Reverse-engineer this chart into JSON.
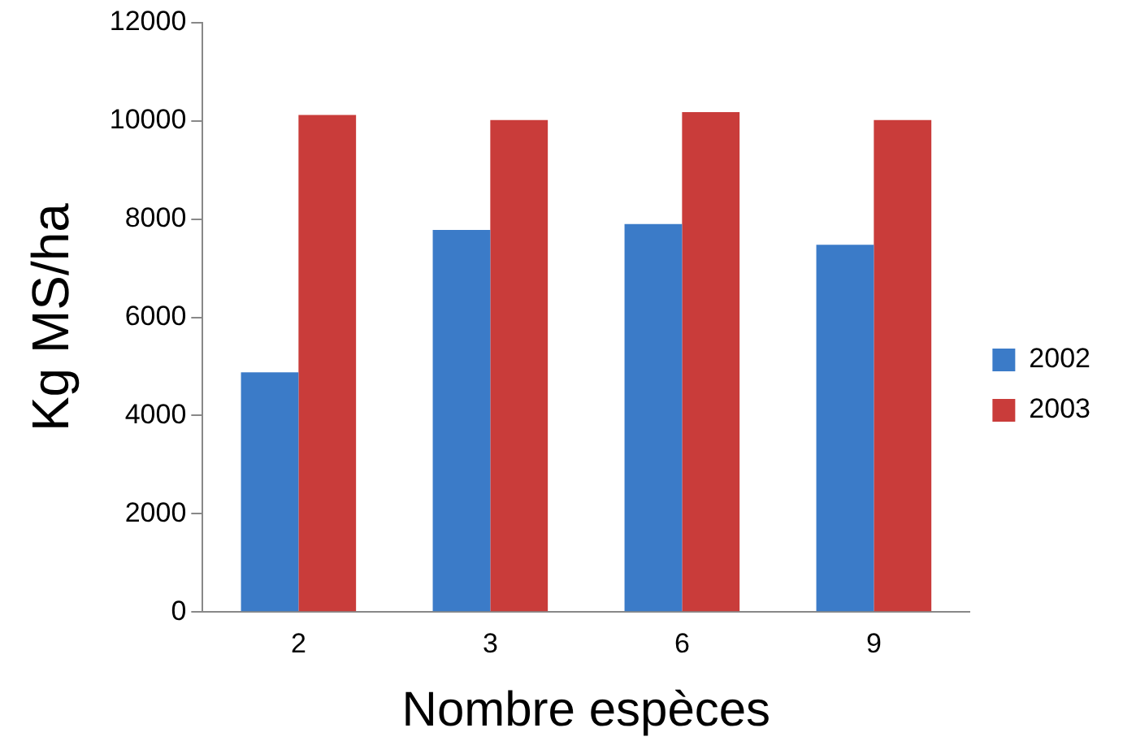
{
  "chart_data": {
    "type": "bar",
    "xlabel": "Nombre espèces",
    "ylabel": "Kg MS/ha",
    "categories": [
      "2",
      "3",
      "6",
      "9"
    ],
    "series": [
      {
        "name": "2002",
        "color": "#3b7bc8",
        "values": [
          4880,
          7780,
          7900,
          7480
        ]
      },
      {
        "name": "2003",
        "color": "#c93c3a",
        "values": [
          10120,
          10020,
          10180,
          10020
        ]
      }
    ],
    "ylim": [
      0,
      12000
    ],
    "yticks": [
      0,
      2000,
      4000,
      6000,
      8000,
      10000,
      12000
    ],
    "grid": false,
    "legend": "right"
  }
}
